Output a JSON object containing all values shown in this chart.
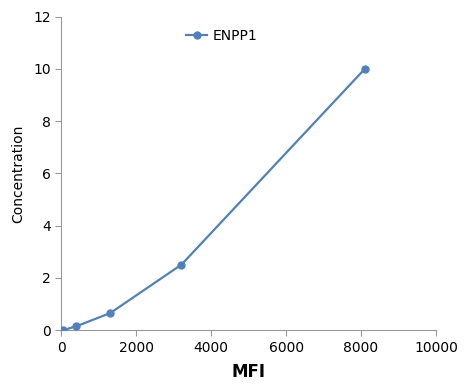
{
  "x": [
    50,
    400,
    1300,
    3200,
    8100
  ],
  "y": [
    0.0,
    0.15,
    0.65,
    2.5,
    10.0
  ],
  "line_color": "#4F81BD",
  "marker_color": "#4F81BD",
  "marker_style": "o",
  "marker_size": 5,
  "line_width": 1.6,
  "xlabel": "MFI",
  "ylabel": "Concentration",
  "legend_label": "ENPP1",
  "xlim": [
    0,
    10000
  ],
  "ylim": [
    0,
    12
  ],
  "xticks": [
    0,
    2000,
    4000,
    6000,
    8000,
    10000
  ],
  "yticks": [
    0,
    2,
    4,
    6,
    8,
    10,
    12
  ],
  "xlabel_fontsize": 12,
  "ylabel_fontsize": 10,
  "tick_fontsize": 10,
  "legend_fontsize": 10,
  "background_color": "#ffffff"
}
